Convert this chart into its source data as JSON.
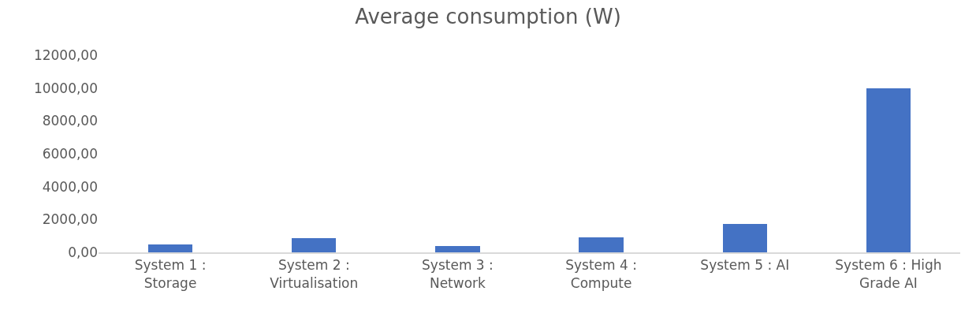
{
  "chart_data": {
    "type": "bar",
    "title": "Average consumption (W)",
    "categories": [
      "System 1 : Storage",
      "System 2 : Virtualisation",
      "System 3 : Network",
      "System 4 : Compute",
      "System 5 : AI",
      "System 6 : High Grade AI"
    ],
    "values": [
      480,
      850,
      400,
      900,
      1750,
      10000
    ],
    "color": "#4472c4",
    "ylim": [
      0,
      12000
    ],
    "yticks": [
      {
        "value": 0,
        "label": "0,00"
      },
      {
        "value": 2000,
        "label": "2000,00"
      },
      {
        "value": 4000,
        "label": "4000,00"
      },
      {
        "value": 6000,
        "label": "6000,00"
      },
      {
        "value": 8000,
        "label": "8000,00"
      },
      {
        "value": 10000,
        "label": "10000,00"
      },
      {
        "value": 12000,
        "label": "12000,00"
      }
    ],
    "grid": false,
    "legend": false
  }
}
